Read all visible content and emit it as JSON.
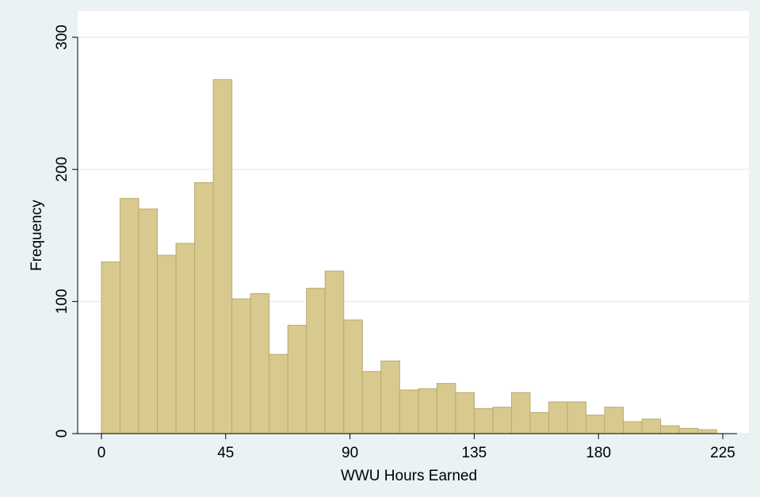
{
  "chart_data": {
    "type": "histogram",
    "xlabel": "WWU Hours Earned",
    "ylabel": "Frequency",
    "bins": [
      0,
      6.75,
      13.5,
      20.25,
      27,
      33.75,
      40.5,
      47.25,
      54,
      60.75,
      67.5,
      74.25,
      81,
      87.75,
      94.5,
      101.25,
      108,
      114.75,
      121.5,
      128.25,
      135,
      141.75,
      148.5,
      155.25,
      162,
      168.75,
      175.5,
      182.25,
      189,
      195.75,
      202.5,
      209.25,
      216,
      222.75
    ],
    "values": [
      130,
      178,
      170,
      135,
      144,
      190,
      268,
      102,
      106,
      60,
      82,
      110,
      123,
      86,
      47,
      55,
      33,
      34,
      38,
      31,
      19,
      20,
      31,
      16,
      24,
      24,
      14,
      20,
      9,
      11,
      6,
      4,
      3
    ],
    "color": "#d8ca8e",
    "xlim": [
      0,
      225
    ],
    "xticks": [
      0,
      45,
      90,
      135,
      180,
      225
    ],
    "ylim": [
      0,
      300
    ],
    "yticks": [
      0,
      100,
      200,
      300
    ],
    "grid": true
  }
}
